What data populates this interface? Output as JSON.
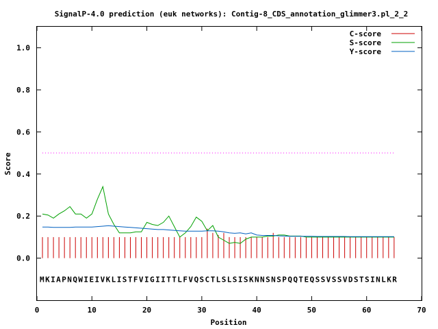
{
  "chart_data": {
    "type": "line",
    "title": "SignalP-4.0 prediction (euk networks): Contig-8_CDS_annotation_glimmer3.pl_2_2",
    "xlabel": "Position",
    "ylabel": "Score",
    "xlim": [
      0,
      70
    ],
    "ylim": [
      -0.2,
      1.1
    ],
    "xticks": [
      {
        "value": 0,
        "label": "0"
      },
      {
        "value": 10,
        "label": "10"
      },
      {
        "value": 20,
        "label": "20"
      },
      {
        "value": 30,
        "label": "30"
      },
      {
        "value": 40,
        "label": "40"
      },
      {
        "value": 50,
        "label": "50"
      },
      {
        "value": 60,
        "label": "60"
      },
      {
        "value": 70,
        "label": "70"
      }
    ],
    "yticks": [
      {
        "value": 0.0,
        "label": "0.0"
      },
      {
        "value": 0.2,
        "label": "0.2"
      },
      {
        "value": 0.4,
        "label": "0.4"
      },
      {
        "value": 0.6,
        "label": "0.6"
      },
      {
        "value": 0.8,
        "label": "0.8"
      },
      {
        "value": 1.0,
        "label": "1.0"
      }
    ],
    "legend_position": "top-right",
    "grid": false,
    "threshold": {
      "value": 0.5,
      "color": "#ff00ff"
    },
    "sequence": "MKIAPNQWIEIVKLISTFVIGIITTLFVQSCTLSLSISKNNSNSPQQTEQSSVSSVDSTSINLKR",
    "sequence_y": -0.1,
    "series": [
      {
        "name": "C-score",
        "style": "impulse",
        "color": "#cc0000",
        "x": [
          1,
          2,
          3,
          4,
          5,
          6,
          7,
          8,
          9,
          10,
          11,
          12,
          13,
          14,
          15,
          16,
          17,
          18,
          19,
          20,
          21,
          22,
          23,
          24,
          25,
          26,
          27,
          28,
          29,
          30,
          31,
          32,
          33,
          34,
          35,
          36,
          37,
          38,
          39,
          40,
          41,
          42,
          43,
          44,
          45,
          46,
          47,
          48,
          49,
          50,
          51,
          52,
          53,
          54,
          55,
          56,
          57,
          58,
          59,
          60,
          61,
          62,
          63,
          64,
          65
        ],
        "values": [
          0.1,
          0.1,
          0.1,
          0.1,
          0.1,
          0.1,
          0.1,
          0.1,
          0.1,
          0.1,
          0.1,
          0.1,
          0.1,
          0.1,
          0.1,
          0.1,
          0.1,
          0.1,
          0.1,
          0.1,
          0.1,
          0.1,
          0.1,
          0.1,
          0.1,
          0.1,
          0.1,
          0.1,
          0.1,
          0.1,
          0.14,
          0.12,
          0.11,
          0.12,
          0.1,
          0.1,
          0.1,
          0.1,
          0.1,
          0.1,
          0.1,
          0.1,
          0.12,
          0.1,
          0.1,
          0.1,
          0.1,
          0.1,
          0.1,
          0.1,
          0.1,
          0.1,
          0.1,
          0.1,
          0.1,
          0.1,
          0.1,
          0.1,
          0.1,
          0.1,
          0.1,
          0.1,
          0.1,
          0.1,
          0.1
        ]
      },
      {
        "name": "S-score",
        "style": "line",
        "color": "#00a000",
        "x": [
          1,
          2,
          3,
          4,
          5,
          6,
          7,
          8,
          9,
          10,
          11,
          12,
          13,
          14,
          15,
          16,
          17,
          18,
          19,
          20,
          21,
          22,
          23,
          24,
          25,
          26,
          27,
          28,
          29,
          30,
          31,
          32,
          33,
          34,
          35,
          36,
          37,
          38,
          39,
          40,
          41,
          42,
          43,
          44,
          45,
          46,
          47,
          48,
          49,
          50,
          51,
          52,
          53,
          54,
          55,
          56,
          57,
          58,
          59,
          60,
          61,
          62,
          63,
          64,
          65
        ],
        "values": [
          0.21,
          0.205,
          0.19,
          0.21,
          0.225,
          0.245,
          0.21,
          0.21,
          0.19,
          0.21,
          0.28,
          0.34,
          0.21,
          0.16,
          0.12,
          0.12,
          0.12,
          0.125,
          0.125,
          0.17,
          0.16,
          0.155,
          0.17,
          0.2,
          0.15,
          0.1,
          0.12,
          0.15,
          0.195,
          0.175,
          0.13,
          0.155,
          0.1,
          0.085,
          0.07,
          0.075,
          0.07,
          0.09,
          0.1,
          0.1,
          0.1,
          0.105,
          0.105,
          0.11,
          0.11,
          0.105,
          0.105,
          0.105,
          0.1,
          0.1,
          0.1,
          0.1,
          0.1,
          0.1,
          0.1,
          0.1,
          0.1,
          0.1,
          0.1,
          0.1,
          0.1,
          0.1,
          0.1,
          0.1,
          0.1
        ]
      },
      {
        "name": "Y-score",
        "style": "line",
        "color": "#0060c0",
        "x": [
          1,
          2,
          3,
          4,
          5,
          6,
          7,
          8,
          9,
          10,
          11,
          12,
          13,
          14,
          15,
          16,
          17,
          18,
          19,
          20,
          21,
          22,
          23,
          24,
          25,
          26,
          27,
          28,
          29,
          30,
          31,
          32,
          33,
          34,
          35,
          36,
          37,
          38,
          39,
          40,
          41,
          42,
          43,
          44,
          45,
          46,
          47,
          48,
          49,
          50,
          51,
          52,
          53,
          54,
          55,
          56,
          57,
          58,
          59,
          60,
          61,
          62,
          63,
          64,
          65
        ],
        "values": [
          0.148,
          0.148,
          0.146,
          0.146,
          0.146,
          0.146,
          0.148,
          0.148,
          0.148,
          0.148,
          0.15,
          0.152,
          0.154,
          0.152,
          0.15,
          0.148,
          0.146,
          0.144,
          0.142,
          0.14,
          0.138,
          0.136,
          0.136,
          0.134,
          0.132,
          0.13,
          0.128,
          0.128,
          0.128,
          0.128,
          0.13,
          0.13,
          0.128,
          0.125,
          0.12,
          0.118,
          0.12,
          0.115,
          0.12,
          0.11,
          0.108,
          0.108,
          0.108,
          0.106,
          0.105,
          0.104,
          0.104,
          0.104,
          0.104,
          0.104,
          0.103,
          0.103,
          0.103,
          0.103,
          0.103,
          0.103,
          0.102,
          0.102,
          0.102,
          0.102,
          0.102,
          0.102,
          0.102,
          0.102,
          0.102
        ]
      }
    ]
  }
}
